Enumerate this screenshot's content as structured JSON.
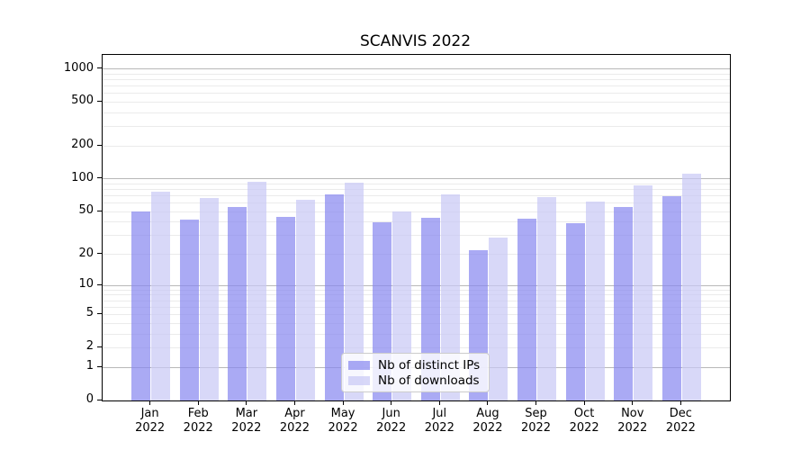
{
  "chart_data": {
    "type": "bar",
    "title": "SCANVIS 2022",
    "categories": [
      "Jan 2022",
      "Feb 2022",
      "Mar 2022",
      "Apr 2022",
      "May 2022",
      "Jun 2022",
      "Jul 2022",
      "Aug 2022",
      "Sep 2022",
      "Oct 2022",
      "Nov 2022",
      "Dec 2022"
    ],
    "series": [
      {
        "name": "Nb of distinct IPs",
        "color": "rgba(134,134,240,0.7)",
        "values": [
          50,
          42,
          55,
          45,
          72,
          40,
          44,
          22,
          43,
          39,
          55,
          70
        ]
      },
      {
        "name": "Nb of downloads",
        "color": "rgba(200,200,245,0.7)",
        "values": [
          77,
          67,
          94,
          64,
          93,
          50,
          72,
          29,
          68,
          62,
          88,
          111
        ]
      }
    ],
    "yscale": "log(1+x)",
    "yticks": [
      0,
      1,
      2,
      5,
      10,
      20,
      50,
      100,
      200,
      500,
      1000
    ],
    "ylim": [
      0,
      1300
    ],
    "grid": true,
    "legend_position": "lower center",
    "colors": {
      "grid_major": "#b8b8b8",
      "grid_minor": "#ebebeb",
      "axis": "#000000",
      "background": "#ffffff"
    }
  }
}
